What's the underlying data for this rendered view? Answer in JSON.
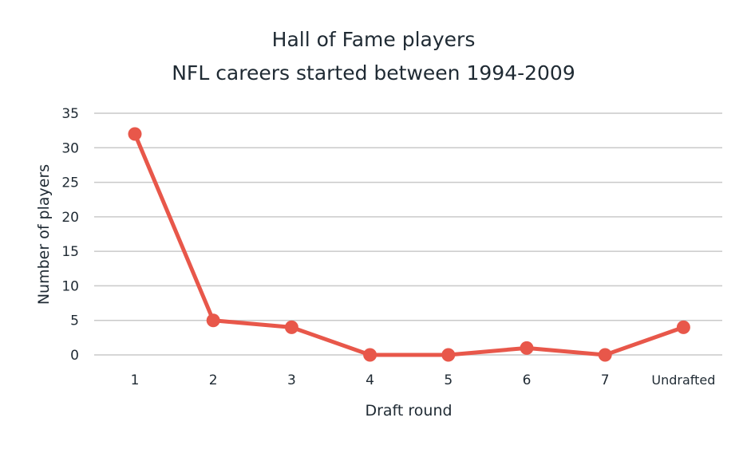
{
  "chart_data": {
    "type": "line",
    "title_lines": [
      "Hall of Fame players",
      "NFL careers started between 1994-2009"
    ],
    "xlabel": "Draft round",
    "ylabel": "Number of players",
    "categories": [
      "1",
      "2",
      "3",
      "4",
      "5",
      "6",
      "7",
      "Undrafted"
    ],
    "series": [
      {
        "values": [
          32,
          5,
          4,
          0,
          0,
          1,
          0,
          4
        ]
      }
    ],
    "ylim": [
      0,
      35
    ],
    "yticks": [
      0,
      5,
      10,
      15,
      20,
      25,
      30,
      35
    ],
    "grid": true,
    "line_color": "#e8574a"
  }
}
